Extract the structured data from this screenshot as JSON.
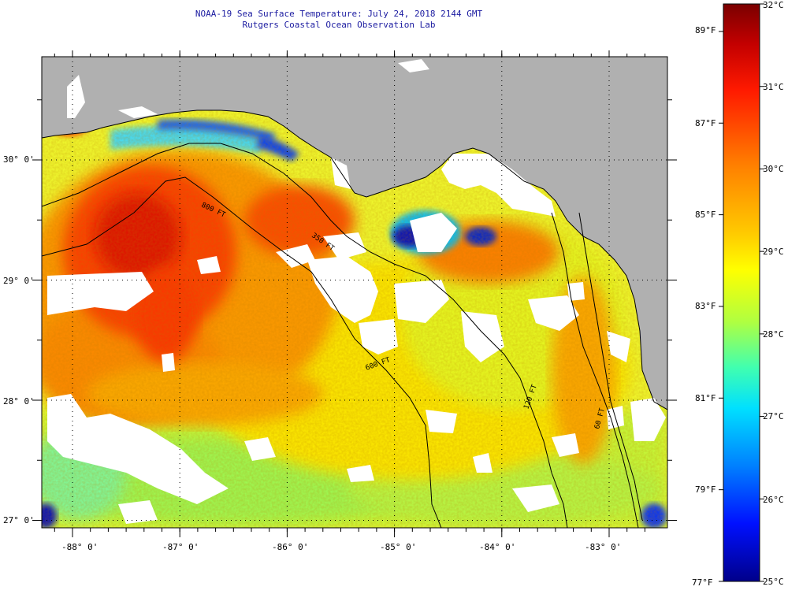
{
  "header": {
    "line1": "NOAA-19 Sea Surface Temperature:  July 24, 2018 2144 GMT",
    "line2": "Rutgers Coastal Ocean Observation Lab"
  },
  "map": {
    "lat_labels": [
      "30° 0'",
      "29° 0'",
      "28° 0'",
      "27° 0'"
    ],
    "lat_values": [
      30,
      29,
      28,
      27
    ],
    "lon_labels": [
      "-88° 0'",
      "-87° 0'",
      "-86° 0'",
      "-85° 0'",
      "-84° 0'",
      "-83° 0'"
    ],
    "lon_values": [
      -88,
      -87,
      -86,
      -85,
      -84,
      -83
    ],
    "isobath_labels": [
      "800 FT",
      "600 FT",
      "120 FT",
      "350 FT",
      "60 FT"
    ]
  },
  "colorbar": {
    "celsius": [
      "32°C",
      "31°C",
      "30°C",
      "29°C",
      "28°C",
      "27°C",
      "26°C",
      "25°C"
    ],
    "celsius_values": [
      32,
      31,
      30,
      29,
      28,
      27,
      26,
      25
    ],
    "fahrenheit": [
      "89°F",
      "87°F",
      "85°F",
      "83°F",
      "81°F",
      "79°F",
      "77°F"
    ],
    "fahrenheit_values": [
      89,
      87,
      85,
      83,
      81,
      79,
      77
    ]
  },
  "colors": {
    "land": "#b0b0b0",
    "cloud": "#ffffff",
    "title_text": "#1a1aa0"
  }
}
